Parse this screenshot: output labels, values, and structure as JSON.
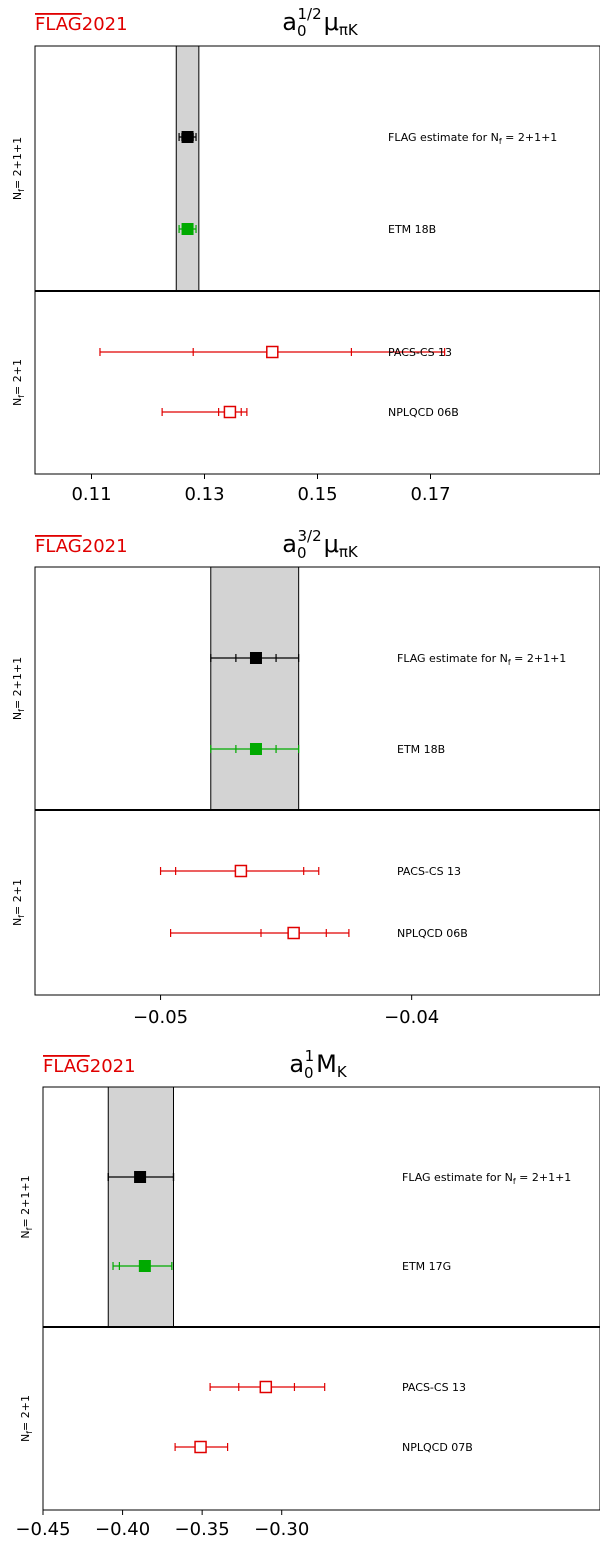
{
  "logo_text": "FLAG 2021",
  "chart_data": [
    {
      "type": "errorbar",
      "title": "a0^{1/2} μ_πK",
      "title_parts": {
        "base": "a",
        "sub": "0",
        "sup": "1/2",
        "rest": "μ",
        "rest_sub": "πK"
      },
      "xlim": [
        0.1,
        0.2
      ],
      "xticks": [
        0.11,
        0.13,
        0.15,
        0.17
      ],
      "xtick_labels": [
        "0.11",
        "0.13",
        "0.15",
        "0.17"
      ],
      "band": {
        "low": 0.125,
        "high": 0.129
      },
      "groups": [
        {
          "label": "N_f = 2+1+1",
          "label_text": "Nf = 2+1+1",
          "entries": [
            {
              "name": "FLAG estimate for N_f = 2+1+1",
              "value": 0.127,
              "stat": [
                0.126,
                0.128
              ],
              "tot": [
                0.1255,
                0.1285
              ],
              "color": "#000000",
              "filled": true
            },
            {
              "name": "ETM 18B",
              "value": 0.127,
              "stat": [
                0.1265,
                0.1275
              ],
              "tot": [
                0.1255,
                0.1285
              ],
              "color": "#00aa00",
              "filled": true
            }
          ]
        },
        {
          "label": "N_f = 2+1",
          "label_text": "Nf = 2+1",
          "entries": [
            {
              "name": "PACS-CS 13",
              "value": 0.142,
              "stat": [
                0.128,
                0.156
              ],
              "tot": [
                0.1115,
                0.1725
              ],
              "color": "#e00000",
              "filled": false
            },
            {
              "name": "NPLQCD 06B",
              "value": 0.1345,
              "stat": [
                0.1325,
                0.1365
              ],
              "tot": [
                0.1225,
                0.1375
              ],
              "color": "#e00000",
              "filled": false
            }
          ]
        }
      ]
    },
    {
      "type": "errorbar",
      "title": "a0^{3/2} μ_πK",
      "title_parts": {
        "base": "a",
        "sub": "0",
        "sup": "3/2",
        "rest": "μ",
        "rest_sub": "πK"
      },
      "xlim": [
        -0.055,
        -0.0325
      ],
      "xticks": [
        -0.05,
        -0.04
      ],
      "xtick_labels": [
        "−0.05",
        "−0.04"
      ],
      "band": {
        "low": -0.048,
        "high": -0.0445
      },
      "groups": [
        {
          "label": "N_f = 2+1+1",
          "label_text": "Nf = 2+1+1",
          "entries": [
            {
              "name": "FLAG estimate for N_f = 2+1+1",
              "value": -0.0462,
              "stat": [
                -0.047,
                -0.0454
              ],
              "tot": [
                -0.048,
                -0.0445
              ],
              "color": "#000000",
              "filled": true
            },
            {
              "name": "ETM 18B",
              "value": -0.0462,
              "stat": [
                -0.047,
                -0.0454
              ],
              "tot": [
                -0.048,
                -0.0445
              ],
              "color": "#00aa00",
              "filled": true
            }
          ]
        },
        {
          "label": "N_f = 2+1",
          "label_text": "Nf = 2+1",
          "entries": [
            {
              "name": "PACS-CS 13",
              "value": -0.0468,
              "stat": [
                -0.0494,
                -0.0443
              ],
              "tot": [
                -0.05,
                -0.0437
              ],
              "color": "#e00000",
              "filled": false
            },
            {
              "name": "NPLQCD 06B",
              "value": -0.0447,
              "stat": [
                -0.046,
                -0.0434
              ],
              "tot": [
                -0.0496,
                -0.0425
              ],
              "color": "#e00000",
              "filled": false
            }
          ]
        }
      ]
    },
    {
      "type": "errorbar",
      "title": "a0^1 M_K",
      "title_parts": {
        "base": "a",
        "sub": "0",
        "sup": "1",
        "rest": "M",
        "rest_sub": "K"
      },
      "xlim": [
        -0.45,
        -0.1
      ],
      "xticks": [
        -0.45,
        -0.4,
        -0.35,
        -0.3
      ],
      "xtick_labels": [
        "−0.45",
        "−0.40",
        "−0.35",
        "−0.30"
      ],
      "band": {
        "low": -0.409,
        "high": -0.368
      },
      "groups": [
        {
          "label": "N_f = 2+1+1",
          "label_text": "Nf = 2+1+1",
          "entries": [
            {
              "name": "FLAG estimate for N_f = 2+1+1",
              "value": -0.389,
              "stat": [
                -0.409,
                -0.368
              ],
              "tot": [
                -0.409,
                -0.368
              ],
              "color": "#000000",
              "filled": true
            },
            {
              "name": "ETM 17G",
              "value": -0.386,
              "stat": [
                -0.402,
                -0.369
              ],
              "tot": [
                -0.406,
                -0.369
              ],
              "color": "#00aa00",
              "filled": true
            }
          ]
        },
        {
          "label": "N_f = 2+1",
          "label_text": "Nf = 2+1",
          "entries": [
            {
              "name": "PACS-CS 13",
              "value": -0.31,
              "stat": [
                -0.327,
                -0.292
              ],
              "tot": [
                -0.345,
                -0.273
              ],
              "color": "#e00000",
              "filled": false
            },
            {
              "name": "NPLQCD 07B",
              "value": -0.351,
              "stat": [
                -0.351,
                -0.351
              ],
              "tot": [
                -0.367,
                -0.334
              ],
              "color": "#e00000",
              "filled": false
            }
          ]
        }
      ]
    }
  ]
}
